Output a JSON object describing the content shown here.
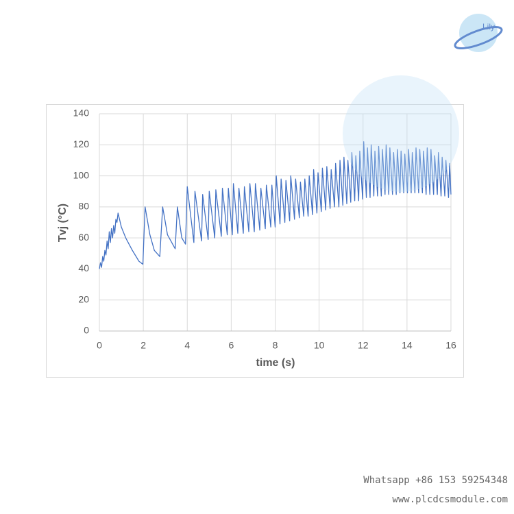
{
  "chart_data": {
    "type": "line",
    "xlabel": "time (s)",
    "ylabel": "Tvj (°C)",
    "x": [
      0,
      0.05,
      0.1,
      0.15,
      0.2,
      0.25,
      0.3,
      0.35,
      0.4,
      0.45,
      0.5,
      0.55,
      0.6,
      0.65,
      0.7,
      0.75,
      0.8,
      0.85,
      0.9,
      0.95,
      1.0,
      1.2,
      1.5,
      1.8,
      1.98,
      2.08,
      2.3,
      2.5,
      2.75,
      2.88,
      3.1,
      3.45,
      3.55,
      3.75,
      3.92,
      4.0,
      4.3,
      4.35,
      4.65,
      4.7,
      4.95,
      5.0,
      5.25,
      5.3,
      5.55,
      5.6,
      5.82,
      5.87,
      6.05,
      6.1,
      6.3,
      6.35,
      6.55,
      6.6,
      6.8,
      6.85,
      7.05,
      7.1,
      7.3,
      7.35,
      7.55,
      7.6,
      7.8,
      7.85,
      8.0,
      8.05,
      8.22,
      8.27,
      8.44,
      8.49,
      8.66,
      8.71,
      8.88,
      8.93,
      9.1,
      9.15,
      9.3,
      9.35,
      9.5,
      9.55,
      9.7,
      9.75,
      9.9,
      9.95,
      10.1,
      10.15,
      10.3,
      10.35,
      10.5,
      10.55,
      10.7,
      10.75,
      10.9,
      10.95,
      11.08,
      11.13,
      11.26,
      11.31,
      11.44,
      11.49,
      11.62,
      11.67,
      11.8,
      11.85,
      11.98,
      12.03,
      12.15,
      12.2,
      12.32,
      12.37,
      12.49,
      12.54,
      12.66,
      12.71,
      12.83,
      12.88,
      13.0,
      13.05,
      13.17,
      13.22,
      13.34,
      13.39,
      13.51,
      13.56,
      13.68,
      13.73,
      13.85,
      13.9,
      14.02,
      14.07,
      14.19,
      14.24,
      14.36,
      14.41,
      14.53,
      14.58,
      14.7,
      14.75,
      14.87,
      14.92,
      15.04,
      15.09,
      15.21,
      15.26,
      15.38,
      15.43,
      15.55,
      15.6,
      15.72,
      15.77,
      15.89,
      15.94,
      16.0
    ],
    "values": [
      40,
      44,
      41,
      48,
      45,
      52,
      49,
      58,
      53,
      64,
      57,
      66,
      60,
      68,
      63,
      72,
      70,
      76,
      73,
      70,
      67,
      60,
      52,
      45,
      43,
      80,
      62,
      52,
      48,
      80,
      62,
      53,
      80,
      60,
      56,
      93,
      57,
      90,
      58,
      88,
      59,
      90,
      60,
      91,
      61,
      92,
      62,
      92,
      62,
      95,
      63,
      92,
      63,
      93,
      64,
      95,
      64,
      95,
      65,
      92,
      66,
      94,
      67,
      94,
      67,
      100,
      69,
      98,
      70,
      97,
      71,
      100,
      72,
      98,
      73,
      96,
      74,
      98,
      74,
      100,
      75,
      104,
      76,
      102,
      77,
      105,
      78,
      106,
      79,
      104,
      80,
      108,
      80,
      110,
      81,
      112,
      82,
      110,
      83,
      115,
      84,
      113,
      84,
      116,
      85,
      122,
      86,
      118,
      86,
      120,
      87,
      116,
      87,
      119,
      87,
      117,
      88,
      120,
      88,
      118,
      88,
      115,
      88,
      117,
      89,
      116,
      89,
      114,
      89,
      117,
      89,
      115,
      89,
      118,
      89,
      117,
      89,
      116,
      88,
      118,
      88,
      117,
      88,
      113,
      88,
      115,
      87,
      112,
      87,
      110,
      86,
      108,
      88
    ],
    "color": "#4472c4",
    "xlim": [
      0,
      16
    ],
    "xticks": [
      0,
      2,
      4,
      6,
      8,
      10,
      12,
      14,
      16
    ],
    "ylim": [
      0,
      140
    ],
    "yticks": [
      0,
      20,
      40,
      60,
      80,
      100,
      120,
      140
    ],
    "grid": true
  },
  "watermark": {
    "logo": "Lily",
    "phone": "Whatsapp +86 153 59254348",
    "site": "www.plcdcsmodule.com"
  }
}
